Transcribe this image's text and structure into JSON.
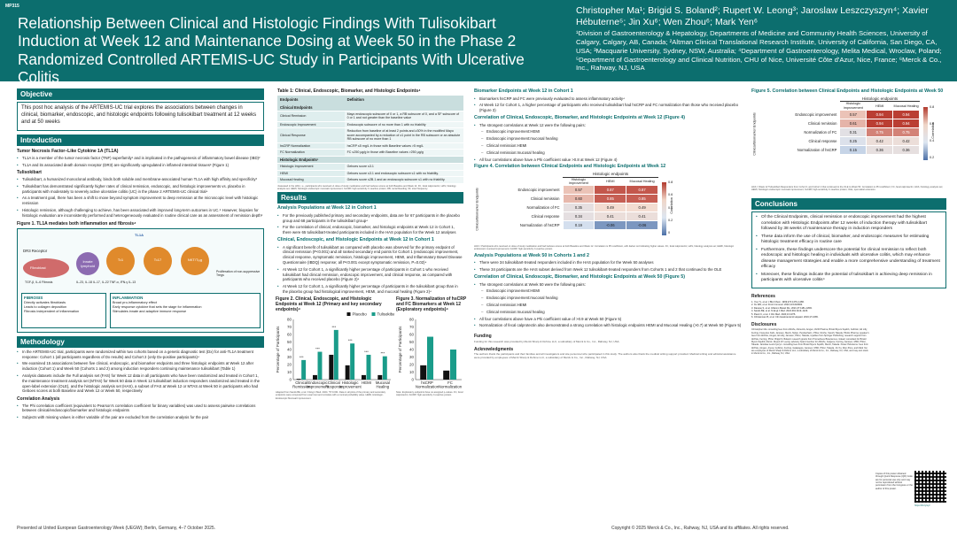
{
  "header": {
    "poster_id": "MP315",
    "title": "Relationship Between Clinical and Histologic Findings With Tulisokibart Induction at Week 12 and Maintenance Dosing at Week 50 in the Phase 2 Randomized Controlled ARTEMIS-UC Study in Participants With Ulcerative Colitis",
    "authors": "Christopher Ma¹; Brigid S. Boland²; Rupert W. Leong³; Jaroslaw Leszczyszyn⁴; Xavier Hébuterne⁵; Jin Xu⁶; Wen Zhou⁶; Mark Yen⁶",
    "affiliations": "¹Division of Gastroenterology & Hepatology, Departments of Medicine and Community Health Sciences, University of Calgary, Calgary, AB, Canada; ²Altman Clinical Translational Research Institute, University of California, San Diego, CA, USA; ³Macquarie University, Sydney, NSW, Australia; ⁴Department of Gastroenterology, Melita Medical, Wroclaw, Poland; ⁵Department of Gastroenterology and Clinical Nutrition, CHU of Nice, Université Côte d'Azur, Nice, France; ⁶Merck & Co., Inc., Rahway, NJ, USA"
  },
  "objective": {
    "title": "Objective",
    "text": "This post hoc analysis of the ARTEMIS-UC trial explores the associations between changes in clinical, biomarker, endoscopic, and histologic endpoints following tulisokibart treatment at 12 weeks and at 50 weeks"
  },
  "introduction": {
    "title": "Introduction",
    "h1": "Tumor Necrosis Factor–Like Cytokine 1A (TL1A)",
    "b1": [
      "TL1A is a member of the tumor necrosis factor (TNF) superfamily¹ and is implicated in the pathogenesis of inflammatory bowel disease (IBD)²",
      "TL1A and its associated death domain receptor (DR3) are significantly upregulated in inflamed intestinal tissues² (Figure 1)"
    ],
    "h2": "Tulisokibart",
    "b2": [
      "Tulisokibart, a humanized monoclonal antibody, binds both soluble and membrane-associated human TL1A with high affinity and specificity³",
      "Tulisokibart has demonstrated significantly higher rates of clinical remission, endoscopic, and histologic improvements vs. placebo in participants with moderately to severely active ulcerative colitis (UC) in the phase 2 ARTEMIS-UC clinical trial⁴",
      "As a treatment goal, there has been a shift to move beyond symptom improvement to deep remission at the microscopic level with histologic remission",
      "Histologic remission, although challenging to achieve, has been associated with improved long-term outcomes in UC.⁵ However, biopsies for histologic evaluation are inconsistently performed and heterogeneously evaluated in routine clinical care as an assessment of remission depth⁶"
    ],
    "fig1_caption": "Figure 1. TL1A mediates both inflammation and fibrosis⁴",
    "fig1": {
      "tl1a": "TL1A",
      "dr3": "DR3 Receptor",
      "fibroblast": "Fibroblast",
      "cells": [
        "Innate lymphoid",
        "Tₕ1",
        "Tₕ17",
        "NKT/Tᵣₑg"
      ],
      "cytokines": "IL-23, IL-18  IL-17, IL-22  TNF-α, IFN-γ  IL-13",
      "fibro_markers": "TGF-β, IL-6  Fibrosis",
      "prolif": "Proliferation of non-suppressive Tregs",
      "fibrosis_title": "FIBROSIS",
      "fibrosis_items": [
        "Directly activates fibroblasts",
        "Leads to collagen deposition",
        "Fibrosis independent of inflammation"
      ],
      "inflam_title": "INFLAMMATION",
      "inflam_items": [
        "Broad pro-inflammatory effect",
        "Early response cytokine that sets the stage for inflammation",
        "Stimulates innate and adaptive immune response"
      ]
    }
  },
  "methodology": {
    "title": "Methodology",
    "b1": [
      "In the ARTEMIS-UC trial, participants were randomized within two cohorts based on a genetic diagnostic test (Dx) for anti-TL1A treatment response: Cohort 1 (all participants regardless of Dx results) and Cohort 2 (only Dx-positive participants)⁴",
      "We examined 15 associations between five clinical, endoscopic, and biomarker endpoints and three histologic endpoints at Week 12 after induction (Cohort 1) and Week 50 (Cohorts 1 and 2) among induction responders continuing maintenance tulisokibart (Table 1)",
      "Analysis datasets include the Full analysis set (FAS) for Week 12 data in all participants who have been randomized and treated in Cohort 1, the maintenance treatment analysis set (MTAS) for Week 50 data in Week 12 tulisokibart induction responders randomized and treated in the open-label extension (OLE), and the histologic analysis set (HAS), a subset of FAS at Week 12 or MTAS at Week 50 in participants who had Geboes scores at both Baseline and Week 12 or Week 50, respectively"
    ],
    "h": "Correlation Analysis",
    "b2": [
      "The Phi correlation coefficient (equivalent to Pearson's correlation coefficient for binary variables) was used to assess pairwise correlations between clinical/endoscopic/biomarker and histologic endpoints",
      "Subjects with missing values in either variable of the pair are excluded from the correlation analysis for the pair"
    ]
  },
  "table1": {
    "caption": "Table 1: Clinical, Endoscopic, Biomarker, and Histologic Endpoints⁴",
    "col1": "Endpoints",
    "col2": "Definition",
    "grp1": "Clinical Endpoints",
    "rows1": [
      {
        "k": "Clinical Remission",
        "v": "Mayo endoscopic subscore of 0 or 1, a RB subscore of 0, and a SF subscore of 0 or 1 and not greater than the baseline value"
      },
      {
        "k": "Endoscopic Improvement",
        "v": "Endoscopic subscore of no more than 1 with no friability"
      },
      {
        "k": "Clinical Response",
        "v": "Reduction from baseline of at least 2 points and ≥30% in the modified Mayo score accompanied by a reduction of ≥1 point in the RB subscore or an absolute RB subscore of no more than 1"
      },
      {
        "k": "hsCRP Normalization",
        "v": "hsCRP ≤5 mg/L in those with Baseline values >5 mg/L"
      },
      {
        "k": "FC Normalization",
        "v": "FC ≤250 µg/g in those with Baseline values >250 µg/g"
      }
    ],
    "grp2": "Histologic Endpoints¹",
    "rows2": [
      {
        "k": "Histologic Improvement",
        "v": "Geboes score ≤3.1"
      },
      {
        "k": "HEMI",
        "v": "Geboes score ≤3.1 and endoscopic subscore ≤1 with no friability."
      },
      {
        "k": "Mucosal Healing",
        "v": "Geboes score ≤2B.1 and an endoscopic subscore ≤1 with no friability."
      }
    ],
    "footnote": "¹Assessed in the HAS, i.e., participants who received ≥1 dose of study medication and had Geboes scores at both Baseline and Week 12. FC, fecal calprotectin; HAS, histology analysis set; HEMI, histologic endoscopic mucosal improvement; hsCRP, high-sensitivity C-reactive protein; RB, rectal bleeding; SF, stool frequency."
  },
  "results": {
    "title": "Results",
    "h1": "Analysis Populations at Week 12 in Cohort 1",
    "b1": [
      "For the previously published primary and secondary endpoints, data are for 67 participants in the placebo group and 68 participants in the tulisokibart group⁴",
      "For the correlation of clinical, endoscopic, biomarker, and histologic endpoints at Week 12 in Cohort 1, there were 65 tulisokibart-treated participants included in the HAS population for the Week 12 analyses"
    ],
    "h2": "Clinical, Endoscopic, and Histologic Endpoints at Week 12 in Cohort 1",
    "b2": [
      "A significant benefit of tulisokibart as compared with placebo was observed for the primary endpoint of clinical remission (P<0.001) and all ranked secondary end points for Cohort 1 (endoscopic improvement, clinical response, symptomatic remission, histologic improvement, HEMI, and Inflammatory Bowel Disease Questionnaire (IBDQ) response; all P<0.001 except symptomatic remission, P=0.02)⁴",
      "At Week 12 for Cohort 1, a significantly higher percentage of participants in Cohort 1 who received tulisokibart had clinical remission, endoscopic improvement, and clinical response, as compared with participants who received placebo (Figure 2)⁴",
      "At Week 12 for Cohort 1, a significantly higher percentage of participants in the tulisokibart group than in the placebo group had histological improvement, HEMI, and mucosal healing (Figure 2)⁴"
    ]
  },
  "fig2": {
    "caption": "Figure 2. Clinical, Endoscopic, and Histologic Endpoints at Week 12 (Primary and key secondary endpoints)⁴",
    "footnote": "Adapted from Sands BE, et al. N Engl J Med. 2024. *P<0.001. Data in all plots of the primary and secondary endpoints were computed from exact test and correlate with a nominal probability value. HEMI, Histologic-Endoscopic Mucosal Improvement."
  },
  "fig3": {
    "caption": "Figure 3. Normalization of hsCRP and FC Biomarkers at Week 12 (Exploratory endpoints)⁴",
    "footnote": "Note: Exploratory endpoints have no assigned p-values. FC, fecal calprotectin; hsCRP, high-sensitivity C-reactive protein."
  },
  "col3": {
    "h1": "Biomarker Endpoints at Week 12 in Cohort 1",
    "b1": [
      "Biomarkers hsCRP and FC were previously evaluated to assess inflammatory activity⁴",
      "At Week 12 for Cohort 1, a higher percentage of participants who received tulisokibart had hsCRP and FC normalization than those who received placebo (Figure 3)"
    ],
    "h2": "Correlation of Clinical, Endoscopic, Biomarker, and Histologic Endpoints at Week 12 (Figure 4)",
    "b2": [
      "The strongest correlations at Week 12 were the following pairs:"
    ],
    "s2": [
      "Endoscopic improvement:HEMI",
      "Endoscopic improvement:mucosal healing",
      "Clinical remission:HEMI",
      "Clinical remission:mucosal healing"
    ],
    "b2b": [
      "All four correlations above have a Phi coefficient value >0.8 at Week 12 (Figure 4)"
    ],
    "fig4_caption": "Figure 4. Correlation between Clinical Endpoints and Histologic Endpoints at Week 12",
    "fig4_footnote": "HAS = Participants who received ≥1 dose of study medication and had Geboes scores at both Baseline and Week 12. Correlation is Phi coefficient, with darker red indicating higher values. FC, fecal calprotectin; HAS, histology analysis set; HEMI, histologic endoscopic mucosal improvement; hsCRP, high-sensitivity C-reactive protein.",
    "h3": "Analysis Populations at Week 50 in Cohorts 1 and 2",
    "b3": [
      "There were 34 tulisokibart-treated responders included in the HAS population for the Week 50 analyses",
      "These 34 participants are the HAS subset derived from Week 12 tulisokibart-treated responders from Cohorts 1 and 2 that continued to the OLE"
    ],
    "h4": "Correlation of Clinical, Endoscopic, Biomarker, and Histologic Endpoints at Week 50 (Figure 5)",
    "b4": [
      "The strongest correlations at Week 50 were the following pairs:"
    ],
    "s4": [
      "Endoscopic improvement:HEMI",
      "Endoscopic improvement:mucosal healing",
      "Clinical remission:HEMI",
      "Clinical remission:mucosal healing"
    ],
    "b4b": [
      "All four correlations above have a Phi coefficient value of >0.9 at Week 50 (Figure 5)",
      "Normalization of fecal calprotectin also demonstrated a strong correlation with histologic endpoints HEMI and Mucosal Healing (>0.7) at Week 50 (Figure 5)"
    ],
    "funding_h": "Funding",
    "funding": "Funding for this research was provided by Merck Sharp & Dohme LLC, a subsidiary of Merck & Co., Inc., Rahway, NJ, USA.",
    "ack_h": "Acknowledgments",
    "ack": "The authors thank the participants and their families and all investigators and site personnel who participated in this study. The authors also thank the medical writing support provided. Medical writing and editorial assistance were provided by employees of Merck Sharp & Dohme LLC, a subsidiary of Merck & Co., Inc., Rahway, NJ, USA."
  },
  "fig5": {
    "caption": "Figure 5. Correlation between Clinical Endpoints and Histologic Endpoints at Week 50",
    "footnote": "HAS = Week 12 Tulisokibart Responders from Cohort 1 and Cohort 2 that continued to the OLE to Week 50. Correlation is Phi coefficient; FC, fecal calprotectin; HAS, histology analysis set; HEMI, histologic endoscopic mucosal improvement; hsCRP, high-sensitivity C-reactive protein; OLE, open-label extension."
  },
  "conclusions": {
    "title": "Conclusions",
    "b": [
      "Of the Clinical Endpoints, clinical remission or endoscopic improvement had the highest correlation with Histologic Endpoints after 12 weeks of induction therapy with tulisokibart followed by 38 weeks of maintenance therapy in induction responders",
      "These data inform the use of clinical, biomarker, and endoscopic measures for estimating histologic treatment efficacy in routine care",
      "Furthermore, these findings underscore the potential for clinical remission to reflect both endoscopic and histologic healing in individuals with ulcerative colitis, which may enhance disease management strategies and enable a more comprehensive understanding of treatment efficacy",
      "Moreover, these findings indicate the potential of tulisokibart in achieving deep remission in participants with ulcerative colitis⁴"
    ]
  },
  "references": {
    "title": "References",
    "items": [
      "1. Yue YL, et al. J Biol Chem. 1999;274:1479–1486.",
      "2. Xu WD, et al. Front Immunol. 2022;13:1018002.",
      "3. Danese S, et al. Inflamm Bowel Dis. 2021;27:1181–1893.",
      "4. Sands BE, et al. N Engl J Med. 2024;391:1119–1129.",
      "5. Pavel C, et al. J Clin Med. 2024;13:1376.",
      "6. Christensen B, et al. Clin Gastroenterol Hepatol. 2019;17:2465."
    ]
  },
  "disclosures": {
    "title": "Disclosures",
    "text": "Christopher Ma: consulting fees from AbbVie, Alimentiv, Amgen, AVIR Pharma, Bristol Myers Squibb, Celltrion, Eli Lilly, Ferring, Fresenius Kabi, Janssen, Merck, Mylan, Pendopharm, Pfizer, Roche, Sanofi, Takeda, Tillotts Pharma; speaker's fees from AbbVie, Amgen, Eli Lilly, Janssen, Pfizer, Takeda; royalties from Springer Publishing; research support from AbbVie, Ferring, Pfizer. Brigid S. Boland: research grants from Prometheus Biosciences, Gilead; consultant for Bristol Myers Squibb, Merck. Rupert W. Leong: advisory board member for AbbVie, Celgene, Ferring, Janssen, MSD, Pfizer, Takeda. Jaroslaw Leszczyszyn: consulting fees from Bristol Myers Squibb, Merck, Takeda. Xavier Hébuterne: fees from AbbVie, Amgen, Arena, Celltrion, Ferring, Galapagos, Janssen, MSD, Pfizer, Takeda. Jin Xu, Wen Zhou, and Mark Yen are employees of Merck Sharp & Dohme LLC, a subsidiary of Merck & Co., Inc., Rahway, NJ, USA, and may own stock in Merck & Co., Inc., Rahway, NJ, USA."
  },
  "qr": {
    "note": "Copies of this poster obtained through Quick Response (QR) Code are for personal use only and may not be reproduced without permission from the Congress or the author of this poster.",
    "url": "https://bit.ly/xyz"
  },
  "footer": {
    "left": "Presented at United European Gastroenterology Week (UEGW); Berlin, Germany, 4–7 October 2025.",
    "right": "Copyright © 2025 Merck & Co., Inc., Rahway, NJ, USA and its affiliates. All rights reserved."
  },
  "chart_data": [
    {
      "type": "bar",
      "id": "fig2",
      "categories": [
        "Clinical Remission",
        "Endoscopic Improvement",
        "Clinical Response",
        "Histologic Improvement",
        "HEMI",
        "Mucosal Healing"
      ],
      "series": [
        {
          "name": "Placebo",
          "values": [
            1,
            6,
            33,
            19,
            6,
            6
          ],
          "color": "#111111"
        },
        {
          "name": "Tulisokibart",
          "values": [
            26,
            37,
            66,
            48,
            33,
            31
          ],
          "color": "#1a9c8a"
        }
      ],
      "ylabel": "Percentage of Participants",
      "ylim": [
        0,
        80
      ],
      "yticks": [
        0,
        10,
        20,
        30,
        40,
        50,
        60,
        70,
        80
      ],
      "annotations": [
        "***",
        "***",
        "***",
        "***",
        "***",
        "***"
      ],
      "legend": "top-center"
    },
    {
      "type": "bar",
      "id": "fig3",
      "categories": [
        "hsCRP Normalization",
        "FC Normalization"
      ],
      "series": [
        {
          "name": "Placebo",
          "values": [
            19,
            12
          ],
          "color": "#111111"
        },
        {
          "name": "Tulisokibart",
          "values": [
            57,
            40
          ],
          "color": "#1a9c8a"
        }
      ],
      "ylabel": "Percentage of Participants",
      "ylim": [
        0,
        80
      ],
      "yticks": [
        0,
        10,
        20,
        30,
        40,
        50,
        60,
        70,
        80
      ]
    },
    {
      "type": "heatmap",
      "id": "fig4",
      "title": "Histologic endpoints",
      "ylabel": "Clinical/Biomarker Endpoints",
      "cbar_label": "Correlation",
      "cbar_ticks": [
        "0.8",
        "0.6",
        "0.4",
        "0.2",
        "0"
      ],
      "columns": [
        "Histologic improvement",
        "HEMI",
        "Mucosal Healing"
      ],
      "rows": [
        "Endoscopic improvement",
        "Clinical remission",
        "Normalization of FC",
        "Clinical response",
        "Normalization of hsCRP"
      ],
      "values": [
        [
          0.57,
          0.87,
          0.87
        ],
        [
          0.6,
          0.85,
          0.85
        ],
        [
          0.35,
          0.49,
          0.49
        ],
        [
          0.34,
          0.41,
          0.41
        ],
        [
          0.19,
          -0.06,
          -0.06
        ]
      ]
    },
    {
      "type": "heatmap",
      "id": "fig5",
      "title": "Histologic endpoints",
      "ylabel": "Clinical/Biomarker Endpoints",
      "cbar_label": "Correlation",
      "cbar_ticks": [
        "0.8",
        "0.6",
        "0.4",
        "0.2"
      ],
      "columns": [
        "Histologic improvement",
        "HEMI",
        "Mucosal Healing"
      ],
      "rows": [
        "Endoscopic improvement",
        "Clinical remission",
        "Normalization of FC",
        "Clinical response",
        "Normalization of hsCRP"
      ],
      "values": [
        [
          0.57,
          0.94,
          0.94
        ],
        [
          0.61,
          0.94,
          0.94
        ],
        [
          0.31,
          0.75,
          0.75
        ],
        [
          0.25,
          0.42,
          0.42
        ],
        [
          0.15,
          0.36,
          0.36
        ]
      ]
    }
  ]
}
